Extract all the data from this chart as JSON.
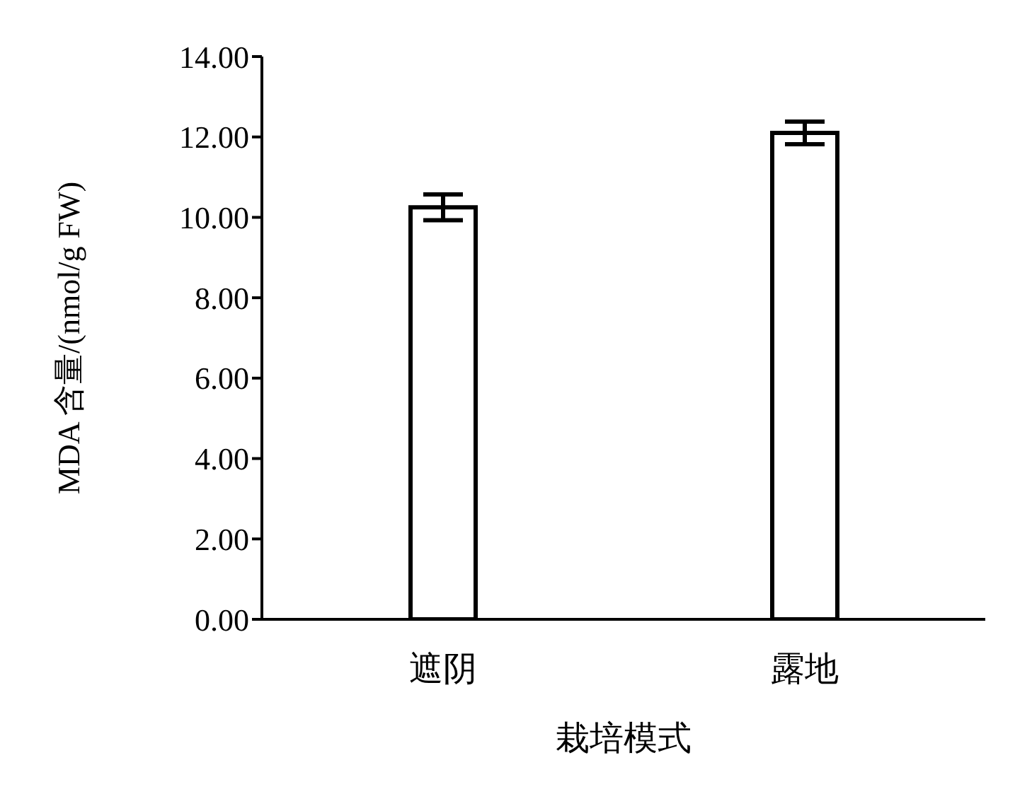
{
  "chart_data": {
    "type": "bar",
    "xlabel": "栽培模式",
    "ylabel": "MDA 含量/(nmol/g FW)",
    "categories": [
      "遮阴",
      "露地"
    ],
    "values": [
      10.25,
      12.1
    ],
    "errors": [
      0.32,
      0.28
    ],
    "color": "#ffffff",
    "ylim": [
      0,
      14
    ],
    "yticks": [
      {
        "value": 0,
        "label": "0.00"
      },
      {
        "value": 2,
        "label": "2.00"
      },
      {
        "value": 4,
        "label": "4.00"
      },
      {
        "value": 6,
        "label": "6.00"
      },
      {
        "value": 8,
        "label": "8.00"
      },
      {
        "value": 10,
        "label": "10.00"
      },
      {
        "value": 12,
        "label": "12.00"
      },
      {
        "value": 14,
        "label": "14.00"
      }
    ],
    "grid": false
  }
}
